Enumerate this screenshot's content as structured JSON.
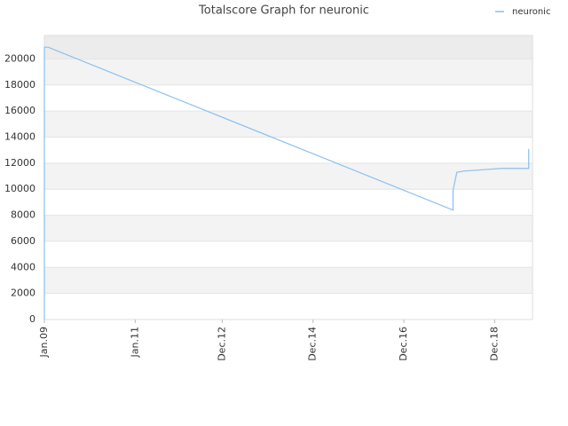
{
  "chart_data": {
    "type": "line",
    "title": "Totalscore Graph for neuronic",
    "x": [
      "2009-01",
      "2009-01",
      "2009-01",
      "2009-02",
      "2018-01",
      "2018-01",
      "2018-02",
      "2018-04",
      "2018-09",
      "2019-02",
      "2019-09",
      "2019-09"
    ],
    "series": [
      {
        "name": "neuronic",
        "color": "#88c0f0",
        "values": [
          0,
          17700,
          20900,
          20900,
          8400,
          9900,
          11300,
          11400,
          11500,
          11600,
          11600,
          13100
        ]
      }
    ],
    "xlim": [
      "2009-01",
      "2019-10"
    ],
    "xticks": [
      {
        "value": "2009-01",
        "label": "Jan.09"
      },
      {
        "value": "2011-01",
        "label": "Jan.11"
      },
      {
        "value": "2012-12",
        "label": "Dec.12"
      },
      {
        "value": "2014-12",
        "label": "Dec.14"
      },
      {
        "value": "2016-12",
        "label": "Dec.16"
      },
      {
        "value": "2018-12",
        "label": "Dec.18"
      }
    ],
    "ylim": [
      0,
      21800
    ],
    "yticks": [
      0,
      2000,
      4000,
      6000,
      8000,
      10000,
      12000,
      14000,
      16000,
      18000,
      20000
    ],
    "grid": true,
    "legend": "top-right"
  }
}
